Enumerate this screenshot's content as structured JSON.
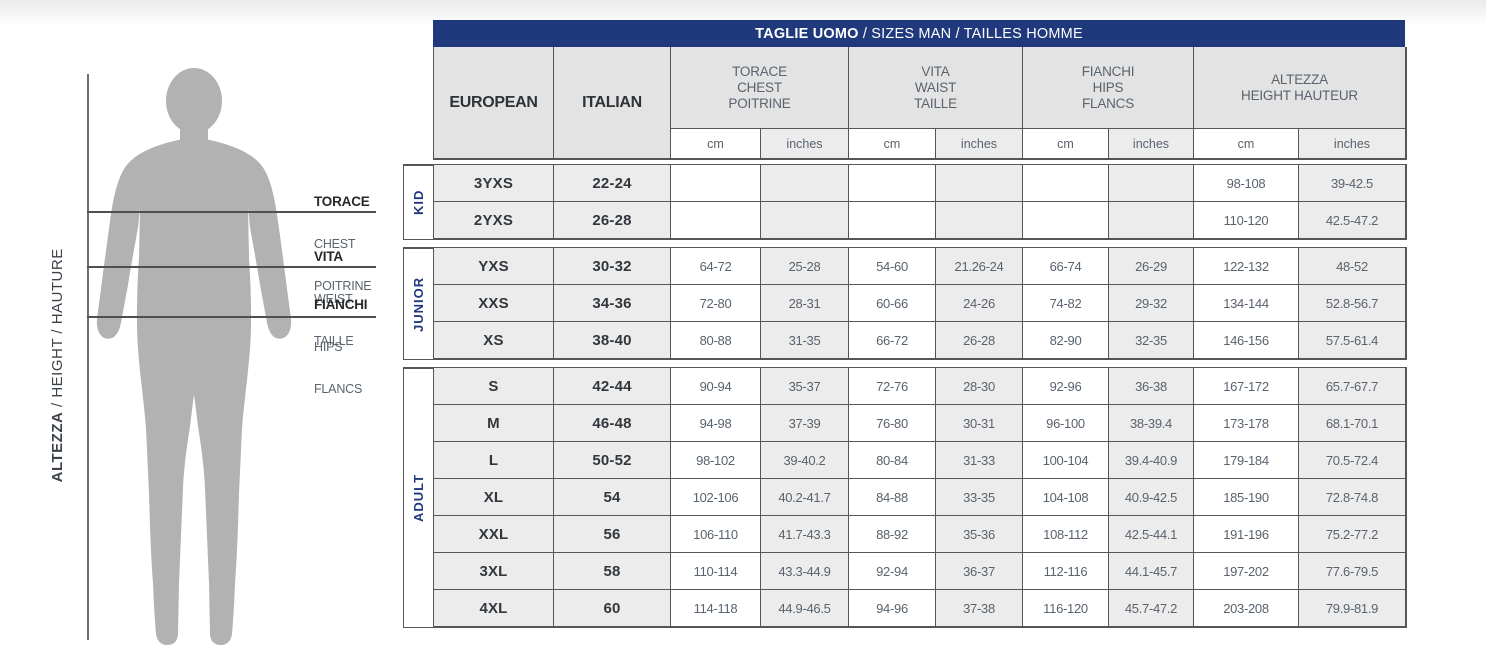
{
  "title": {
    "primary": "TAGLIE UOMO",
    "secondary": " / SIZES MAN / TAILLES HOMME"
  },
  "figure": {
    "height_label": {
      "bold": "ALTEZZA",
      "rest": " / HEIGHT / HAUTURE"
    },
    "measure_labels": [
      {
        "name": "TORACE",
        "sub1": "CHEST",
        "sub2": "POITRINE"
      },
      {
        "name": "VITA",
        "sub1": "WEIST",
        "sub2": "TAILLE"
      },
      {
        "name": "FIANCHI",
        "sub1": "HIPS",
        "sub2": "FLANCS"
      }
    ]
  },
  "table": {
    "header": {
      "size_columns": [
        "EUROPEAN",
        "ITALIAN"
      ],
      "measure_columns": [
        {
          "name": "TORACE",
          "sub": [
            "CHEST",
            "POITRINE"
          ]
        },
        {
          "name": "VITA",
          "sub": [
            "WAIST",
            "TAILLE"
          ]
        },
        {
          "name": "FIANCHI",
          "sub": [
            "HIPS",
            "FLANCS"
          ]
        },
        {
          "name": "ALTEZZA",
          "sub": [
            "HEIGHT HAUTEUR"
          ]
        }
      ],
      "units": [
        "cm",
        "inches"
      ]
    },
    "groups": [
      {
        "label": "KID",
        "rows": [
          {
            "european": "3YXS",
            "italian": "22-24",
            "values": [
              "",
              "",
              "",
              "",
              "",
              "",
              "98-108",
              "39-42.5"
            ]
          },
          {
            "european": "2YXS",
            "italian": "26-28",
            "values": [
              "",
              "",
              "",
              "",
              "",
              "",
              "110-120",
              "42.5-47.2"
            ]
          }
        ]
      },
      {
        "label": "JUNIOR",
        "rows": [
          {
            "european": "YXS",
            "italian": "30-32",
            "values": [
              "64-72",
              "25-28",
              "54-60",
              "21.26-24",
              "66-74",
              "26-29",
              "122-132",
              "48-52"
            ]
          },
          {
            "european": "XXS",
            "italian": "34-36",
            "values": [
              "72-80",
              "28-31",
              "60-66",
              "24-26",
              "74-82",
              "29-32",
              "134-144",
              "52.8-56.7"
            ]
          },
          {
            "european": "XS",
            "italian": "38-40",
            "values": [
              "80-88",
              "31-35",
              "66-72",
              "26-28",
              "82-90",
              "32-35",
              "146-156",
              "57.5-61.4"
            ]
          }
        ]
      },
      {
        "label": "ADULT",
        "rows": [
          {
            "european": "S",
            "italian": "42-44",
            "values": [
              "90-94",
              "35-37",
              "72-76",
              "28-30",
              "92-96",
              "36-38",
              "167-172",
              "65.7-67.7"
            ]
          },
          {
            "european": "M",
            "italian": "46-48",
            "values": [
              "94-98",
              "37-39",
              "76-80",
              "30-31",
              "96-100",
              "38-39.4",
              "173-178",
              "68.1-70.1"
            ]
          },
          {
            "european": "L",
            "italian": "50-52",
            "values": [
              "98-102",
              "39-40.2",
              "80-84",
              "31-33",
              "100-104",
              "39.4-40.9",
              "179-184",
              "70.5-72.4"
            ]
          },
          {
            "european": "XL",
            "italian": "54",
            "values": [
              "102-106",
              "40.2-41.7",
              "84-88",
              "33-35",
              "104-108",
              "40.9-42.5",
              "185-190",
              "72.8-74.8"
            ]
          },
          {
            "european": "XXL",
            "italian": "56",
            "values": [
              "106-110",
              "41.7-43.3",
              "88-92",
              "35-36",
              "108-112",
              "42.5-44.1",
              "191-196",
              "75.2-77.2"
            ]
          },
          {
            "european": "3XL",
            "italian": "58",
            "values": [
              "110-114",
              "43.3-44.9",
              "92-94",
              "36-37",
              "112-116",
              "44.1-45.7",
              "197-202",
              "77.6-79.5"
            ]
          },
          {
            "european": "4XL",
            "italian": "60",
            "values": [
              "114-118",
              "44.9-46.5",
              "94-96",
              "37-38",
              "116-120",
              "45.7-47.2",
              "203-208",
              "79.9-81.9"
            ]
          }
        ]
      }
    ]
  },
  "colors": {
    "header_navy": "#20397c",
    "cell_gray": "#ececec",
    "header_gray": "#e3e3e3",
    "border": "#565656",
    "text_slate": "#59636d",
    "text_dark": "#31373c",
    "silhouette_gray": "#b2b2b2"
  }
}
